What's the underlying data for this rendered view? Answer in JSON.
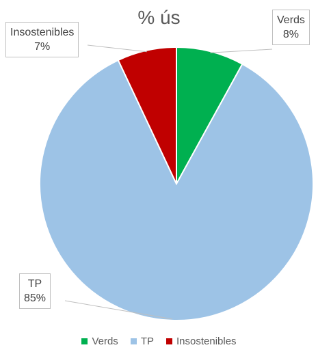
{
  "chart_data": {
    "type": "pie",
    "title": "% ús",
    "slices": [
      {
        "label": "Verds",
        "value": 8,
        "value_label": "8%",
        "color": "#00b050"
      },
      {
        "label": "TP",
        "value": 85,
        "value_label": "85%",
        "color": "#9dc3e6"
      },
      {
        "label": "Insostenibles",
        "value": 7,
        "value_label": "7%",
        "color": "#c00000"
      }
    ],
    "start_angle_deg": 0,
    "direction": "clockwise",
    "legend_position": "bottom",
    "data_labels": "callout"
  }
}
